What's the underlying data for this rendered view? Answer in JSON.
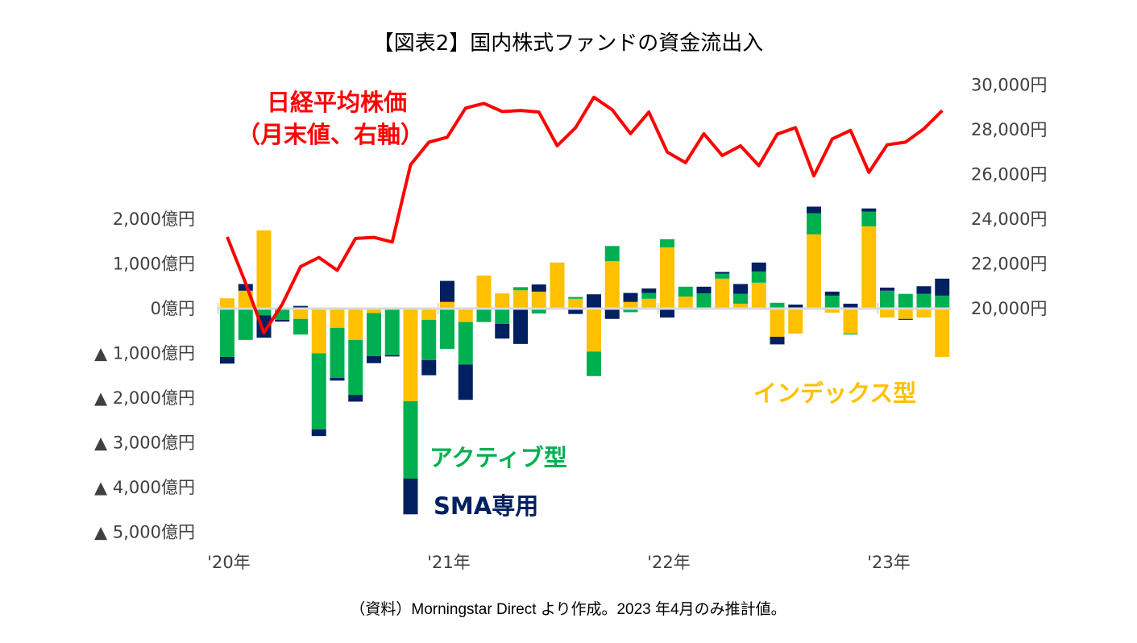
{
  "chart_data": {
    "type": "bar+line",
    "title": "【図表2】国内株式ファンドの資金流出入",
    "note": "（資料）Morningstar Direct より作成。2023 年4月のみ推計値。",
    "months": [
      "2020-01",
      "2020-02",
      "2020-03",
      "2020-04",
      "2020-05",
      "2020-06",
      "2020-07",
      "2020-08",
      "2020-09",
      "2020-10",
      "2020-11",
      "2020-12",
      "2021-01",
      "2021-02",
      "2021-03",
      "2021-04",
      "2021-05",
      "2021-06",
      "2021-07",
      "2021-08",
      "2021-09",
      "2021-10",
      "2021-11",
      "2021-12",
      "2022-01",
      "2022-02",
      "2022-03",
      "2022-04",
      "2022-05",
      "2022-06",
      "2022-07",
      "2022-08",
      "2022-09",
      "2022-10",
      "2022-11",
      "2022-12",
      "2023-01",
      "2023-02",
      "2023-03",
      "2023-04"
    ],
    "x_tick_labels": [
      "'20年",
      "'21年",
      "'22年",
      "'23年"
    ],
    "left_axis": {
      "ticks": [
        2000,
        1000,
        0,
        -1000,
        -2000,
        -3000,
        -4000,
        -5000
      ],
      "tick_labels": [
        "2,000億円",
        "1,000億円",
        "0億円",
        "▲ 1,000億円",
        "▲ 2,000億円",
        "▲ 3,000億円",
        "▲ 4,000億円",
        "▲ 5,000億円"
      ],
      "ylim": [
        -5000,
        2000
      ]
    },
    "right_axis": {
      "ticks": [
        30000,
        28000,
        26000,
        24000,
        22000,
        20000
      ],
      "tick_labels": [
        "30,000円",
        "28,000円",
        "26,000円",
        "24,000円",
        "22,000円",
        "20,000円"
      ],
      "ylim": [
        18000,
        30000
      ]
    },
    "series": [
      {
        "name": "インデックス型",
        "color": "#FFC000",
        "axis": "left",
        "kind": "stacked-bar",
        "values": [
          230,
          400,
          1750,
          0,
          -230,
          -1000,
          -430,
          -700,
          -100,
          0,
          -2070,
          -250,
          150,
          -300,
          740,
          340,
          410,
          380,
          1030,
          220,
          -960,
          1060,
          150,
          220,
          1370,
          270,
          0,
          670,
          110,
          580,
          -630,
          -560,
          1660,
          -90,
          -560,
          1840,
          -200,
          -230,
          -200,
          -1080
        ]
      },
      {
        "name": "アクティブ型",
        "color": "#00B050",
        "axis": "left",
        "kind": "stacked-bar",
        "values": [
          -1080,
          -700,
          -150,
          -250,
          -350,
          -1700,
          -1120,
          -1230,
          -960,
          -1040,
          -1730,
          -900,
          -900,
          -950,
          -300,
          -340,
          70,
          -110,
          0,
          40,
          -550,
          340,
          -80,
          130,
          180,
          220,
          340,
          110,
          220,
          250,
          130,
          0,
          470,
          290,
          -20,
          330,
          400,
          330,
          330,
          290
        ]
      },
      {
        "name": "SMA専用",
        "color": "#002060",
        "axis": "left",
        "kind": "stacked-bar",
        "values": [
          -150,
          150,
          -500,
          -40,
          60,
          -150,
          -60,
          -150,
          -160,
          -30,
          -800,
          -340,
          470,
          -790,
          0,
          -330,
          -790,
          160,
          0,
          -120,
          320,
          -230,
          200,
          100,
          -200,
          0,
          150,
          40,
          220,
          200,
          -170,
          90,
          150,
          90,
          110,
          70,
          70,
          -20,
          170,
          380
        ]
      },
      {
        "name": "日経平均株価（月末値、右軸）",
        "color": "#FF0000",
        "axis": "right",
        "kind": "line",
        "values": [
          23205,
          21143,
          18917,
          20194,
          21878,
          22288,
          21710,
          23140,
          23185,
          22977,
          26434,
          27444,
          27663,
          28966,
          29179,
          28813,
          28860,
          28792,
          27284,
          28090,
          29453,
          28893,
          27822,
          28792,
          27002,
          26527,
          27821,
          26848,
          27280,
          26393,
          27802,
          28092,
          25937,
          27587,
          27969,
          26095,
          27327,
          27446,
          28041,
          28856
        ]
      }
    ],
    "annotations": {
      "nikkei_line1": "日経平均株価",
      "nikkei_line2": "（月末値、右軸）",
      "index": "インデックス型",
      "active": "アクティブ型",
      "sma": "SMA専用"
    },
    "grid": false,
    "legend": "inline annotations"
  }
}
